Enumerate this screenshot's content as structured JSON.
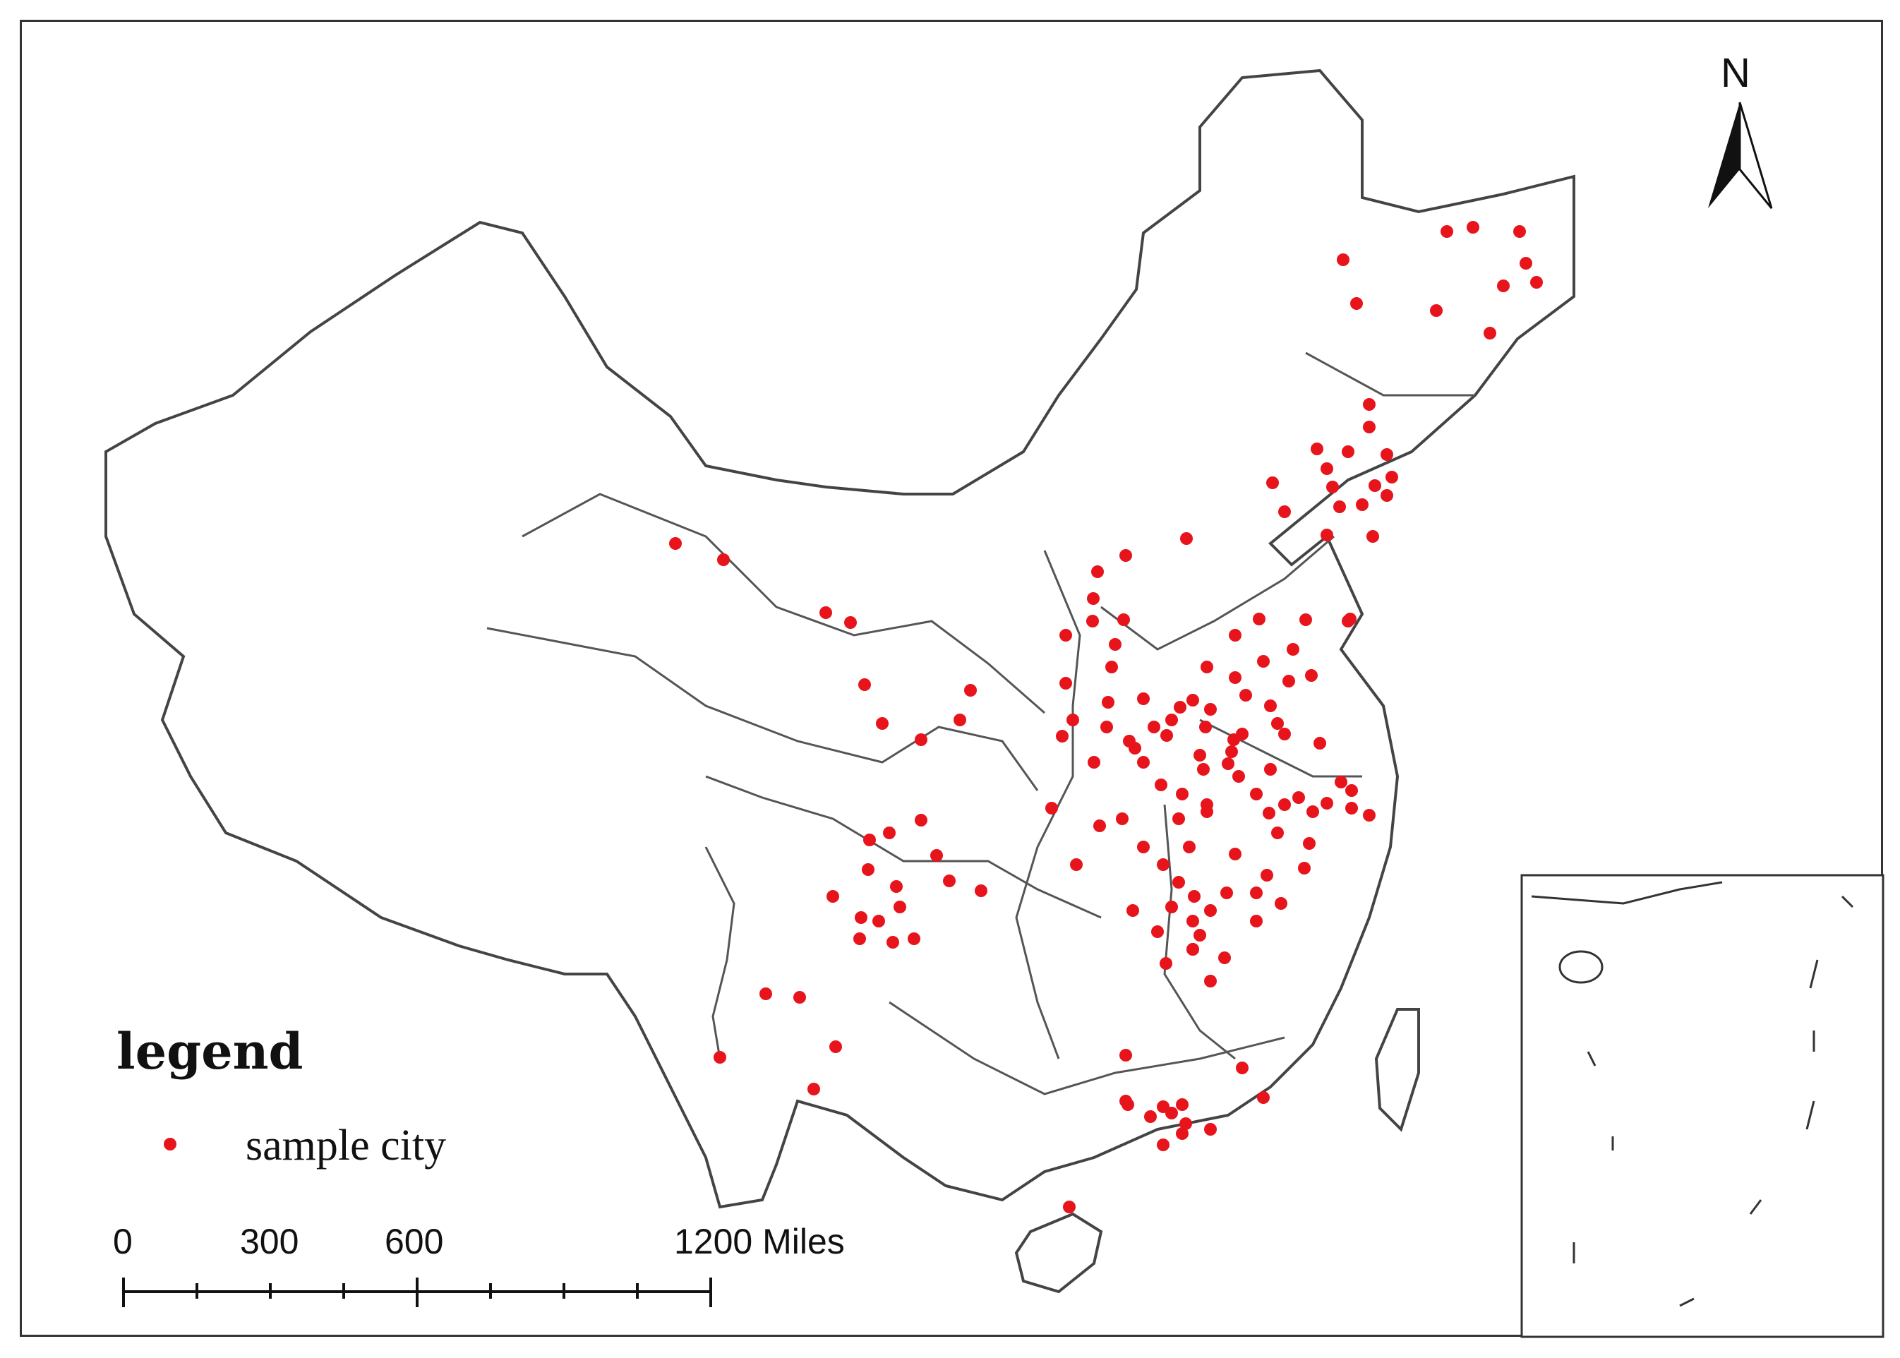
{
  "legend": {
    "title": "legend",
    "item_label": "sample city"
  },
  "scale_bar": {
    "ticks": [
      "0",
      "300",
      "600",
      "1200 Miles"
    ]
  },
  "north_arrow": {
    "label": "N"
  },
  "colors": {
    "sample_city": "#e8141c",
    "province_border": "#555555",
    "county_border": "#bbbbbb"
  },
  "icons": [
    "north-arrow-icon",
    "sample-city-dot-icon"
  ]
}
